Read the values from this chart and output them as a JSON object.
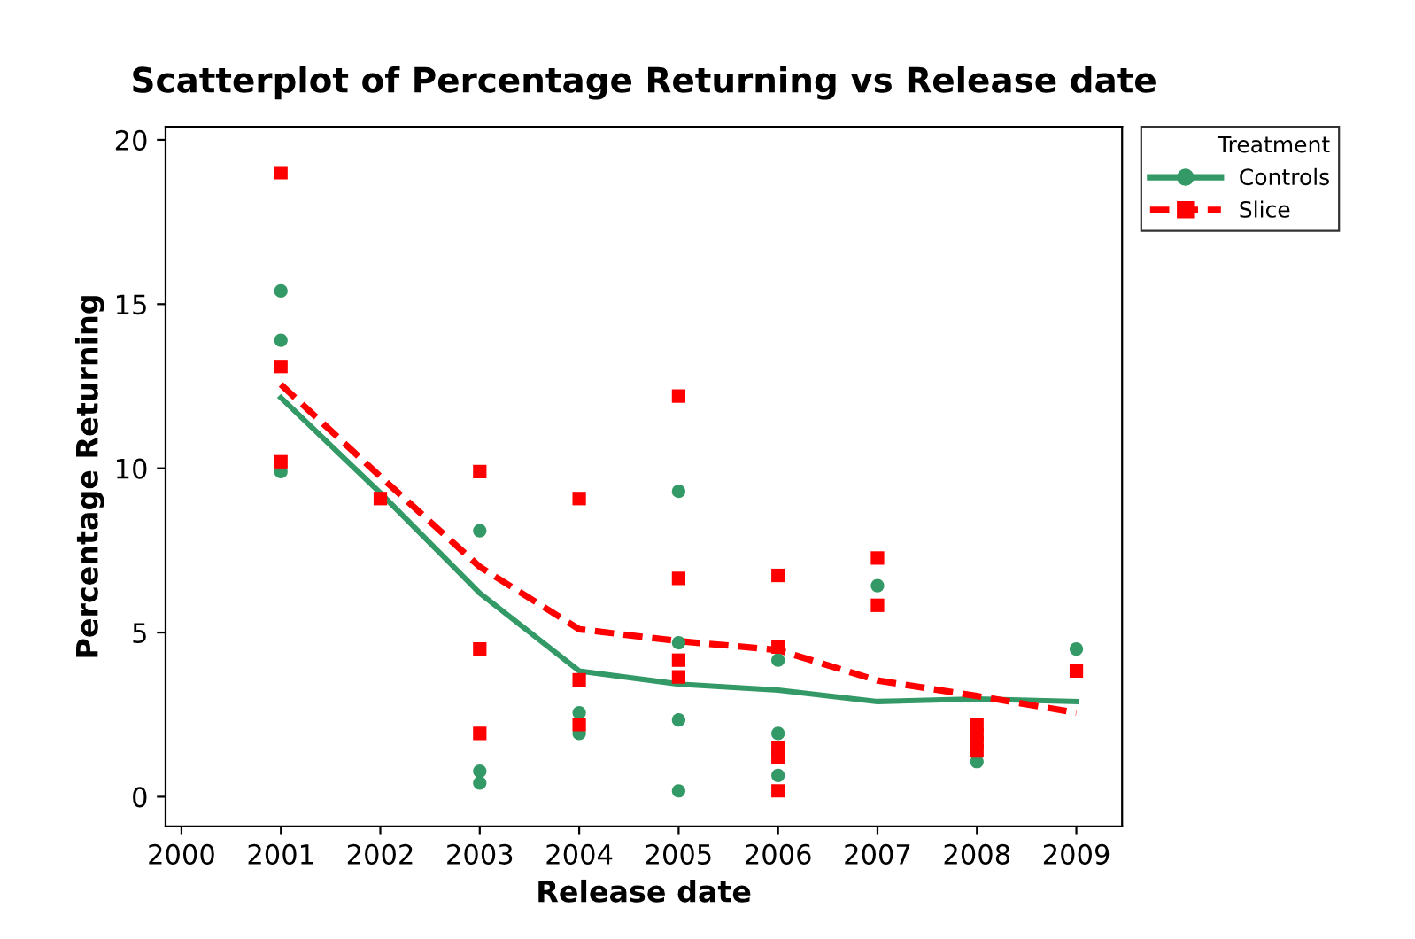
{
  "chart_data": {
    "type": "scatter",
    "title": "Scatterplot of Percentage Returning vs Release date",
    "xlabel": "Release date",
    "ylabel": "Percentage Returning",
    "legend_title": "Treatment",
    "legend": "top right",
    "grid": false,
    "xlim": [
      1999.84,
      2009.46
    ],
    "xticks": [
      2000,
      2001,
      2002,
      2003,
      2004,
      2005,
      2006,
      2007,
      2008,
      2009
    ],
    "ylim": [
      -0.9,
      20.4
    ],
    "yticks": [
      0,
      5,
      10,
      15,
      20
    ],
    "series": [
      {
        "name": "Controls",
        "color": "#339966",
        "marker": "circle",
        "line_style": "solid",
        "x": [
          2001,
          2001,
          2001,
          2003,
          2003,
          2003,
          2004,
          2004,
          2005,
          2005,
          2005,
          2005,
          2006,
          2006,
          2006,
          2007,
          2008,
          2009
        ],
        "values": [
          15.4,
          13.9,
          9.9,
          8.1,
          0.78,
          0.42,
          2.56,
          1.93,
          9.3,
          4.69,
          2.34,
          0.18,
          4.16,
          1.93,
          0.65,
          6.43,
          1.07,
          4.5
        ]
      },
      {
        "name": "Slice",
        "color": "#ff0000",
        "marker": "square",
        "line_style": "dashed",
        "x": [
          2001,
          2001,
          2001,
          2002,
          2003,
          2003,
          2003,
          2004,
          2004,
          2004,
          2005,
          2005,
          2005,
          2005,
          2006,
          2006,
          2006,
          2006,
          2006,
          2007,
          2007,
          2008,
          2008,
          2008,
          2008,
          2009
        ],
        "values": [
          19.0,
          13.1,
          10.2,
          9.08,
          9.9,
          4.5,
          1.93,
          9.08,
          3.56,
          2.2,
          12.2,
          6.65,
          4.16,
          3.65,
          6.74,
          4.56,
          1.5,
          1.2,
          0.18,
          7.27,
          5.83,
          2.2,
          1.9,
          1.65,
          1.4,
          3.83
        ]
      },
      {
        "type": "line",
        "color": "#339966",
        "marker": "none",
        "line_style": "solid",
        "x": [
          2001,
          2002,
          2003,
          2004,
          2005,
          2006,
          2007,
          2008,
          2009
        ],
        "values": [
          12.15,
          9.25,
          6.2,
          3.83,
          3.43,
          3.25,
          2.9,
          2.98,
          2.9
        ]
      },
      {
        "type": "line",
        "color": "#ff0000",
        "marker": "none",
        "line_style": "dashed",
        "x": [
          2001,
          2002,
          2003,
          2004,
          2005,
          2006,
          2007,
          2008,
          2009
        ],
        "values": [
          12.55,
          9.75,
          7.0,
          5.1,
          4.74,
          4.47,
          3.54,
          3.07,
          2.56
        ]
      }
    ]
  }
}
